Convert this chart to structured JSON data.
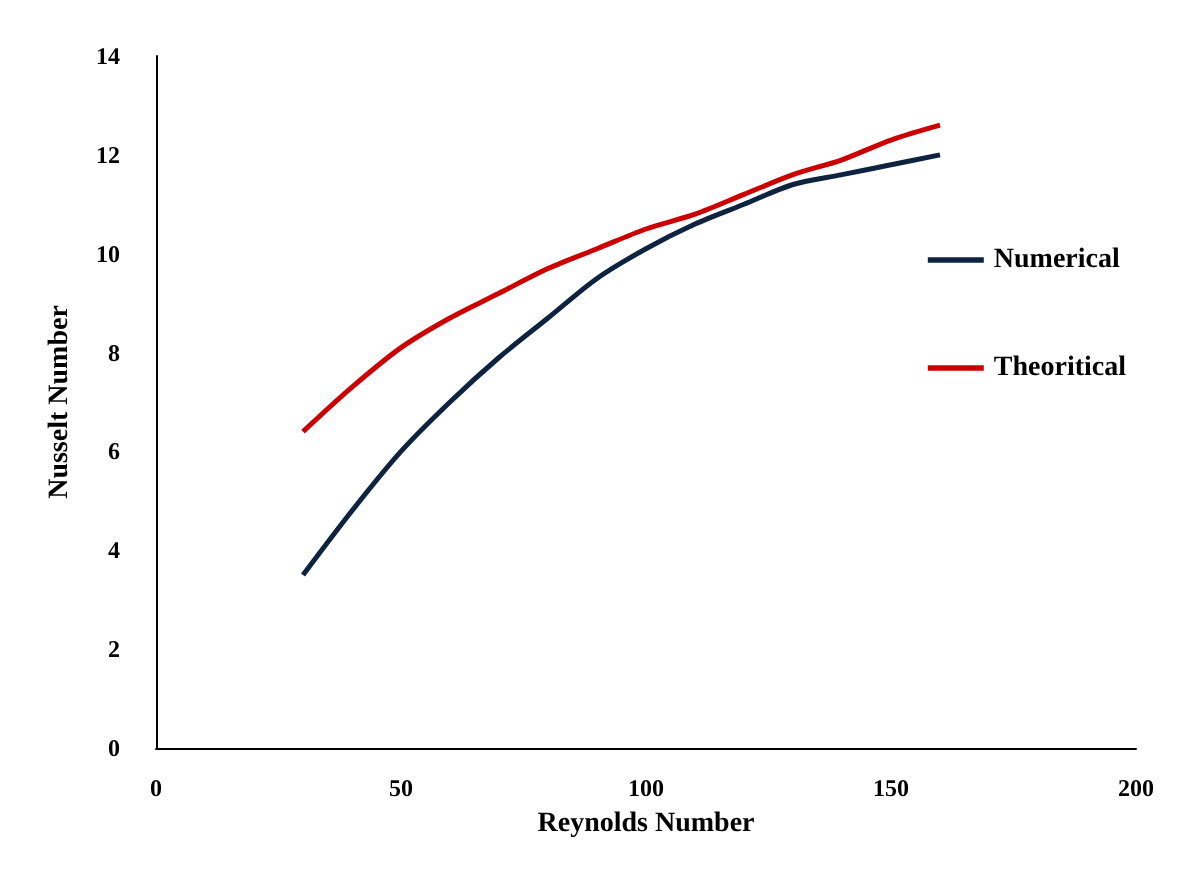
{
  "chart_data": {
    "type": "line",
    "xlabel": "Reynolds Number",
    "ylabel": "Nusselt Number",
    "series": [
      {
        "name": "Numerical",
        "color": "#0d2340",
        "x": [
          30,
          40,
          50,
          60,
          70,
          80,
          90,
          100,
          110,
          120,
          130,
          140,
          150,
          160
        ],
        "values": [
          3.5,
          4.8,
          6.0,
          7.0,
          7.9,
          8.7,
          9.5,
          10.1,
          10.6,
          11.0,
          11.4,
          11.6,
          11.8,
          12.0
        ]
      },
      {
        "name": "Theoritical",
        "color": "#cc0000",
        "x": [
          30,
          40,
          50,
          60,
          70,
          80,
          90,
          100,
          110,
          120,
          130,
          140,
          150,
          160
        ],
        "values": [
          6.4,
          7.3,
          8.1,
          8.7,
          9.2,
          9.7,
          10.1,
          10.5,
          10.8,
          11.2,
          11.6,
          11.9,
          12.3,
          12.6
        ]
      }
    ],
    "xlim": [
      0,
      200
    ],
    "xticks": [
      0,
      50,
      100,
      150,
      200
    ],
    "ylim": [
      0,
      14
    ],
    "yticks": [
      0,
      2,
      4,
      6,
      8,
      10,
      12,
      14
    ],
    "grid": false,
    "legend": "right",
    "marker": "none",
    "line_style": "solid"
  }
}
